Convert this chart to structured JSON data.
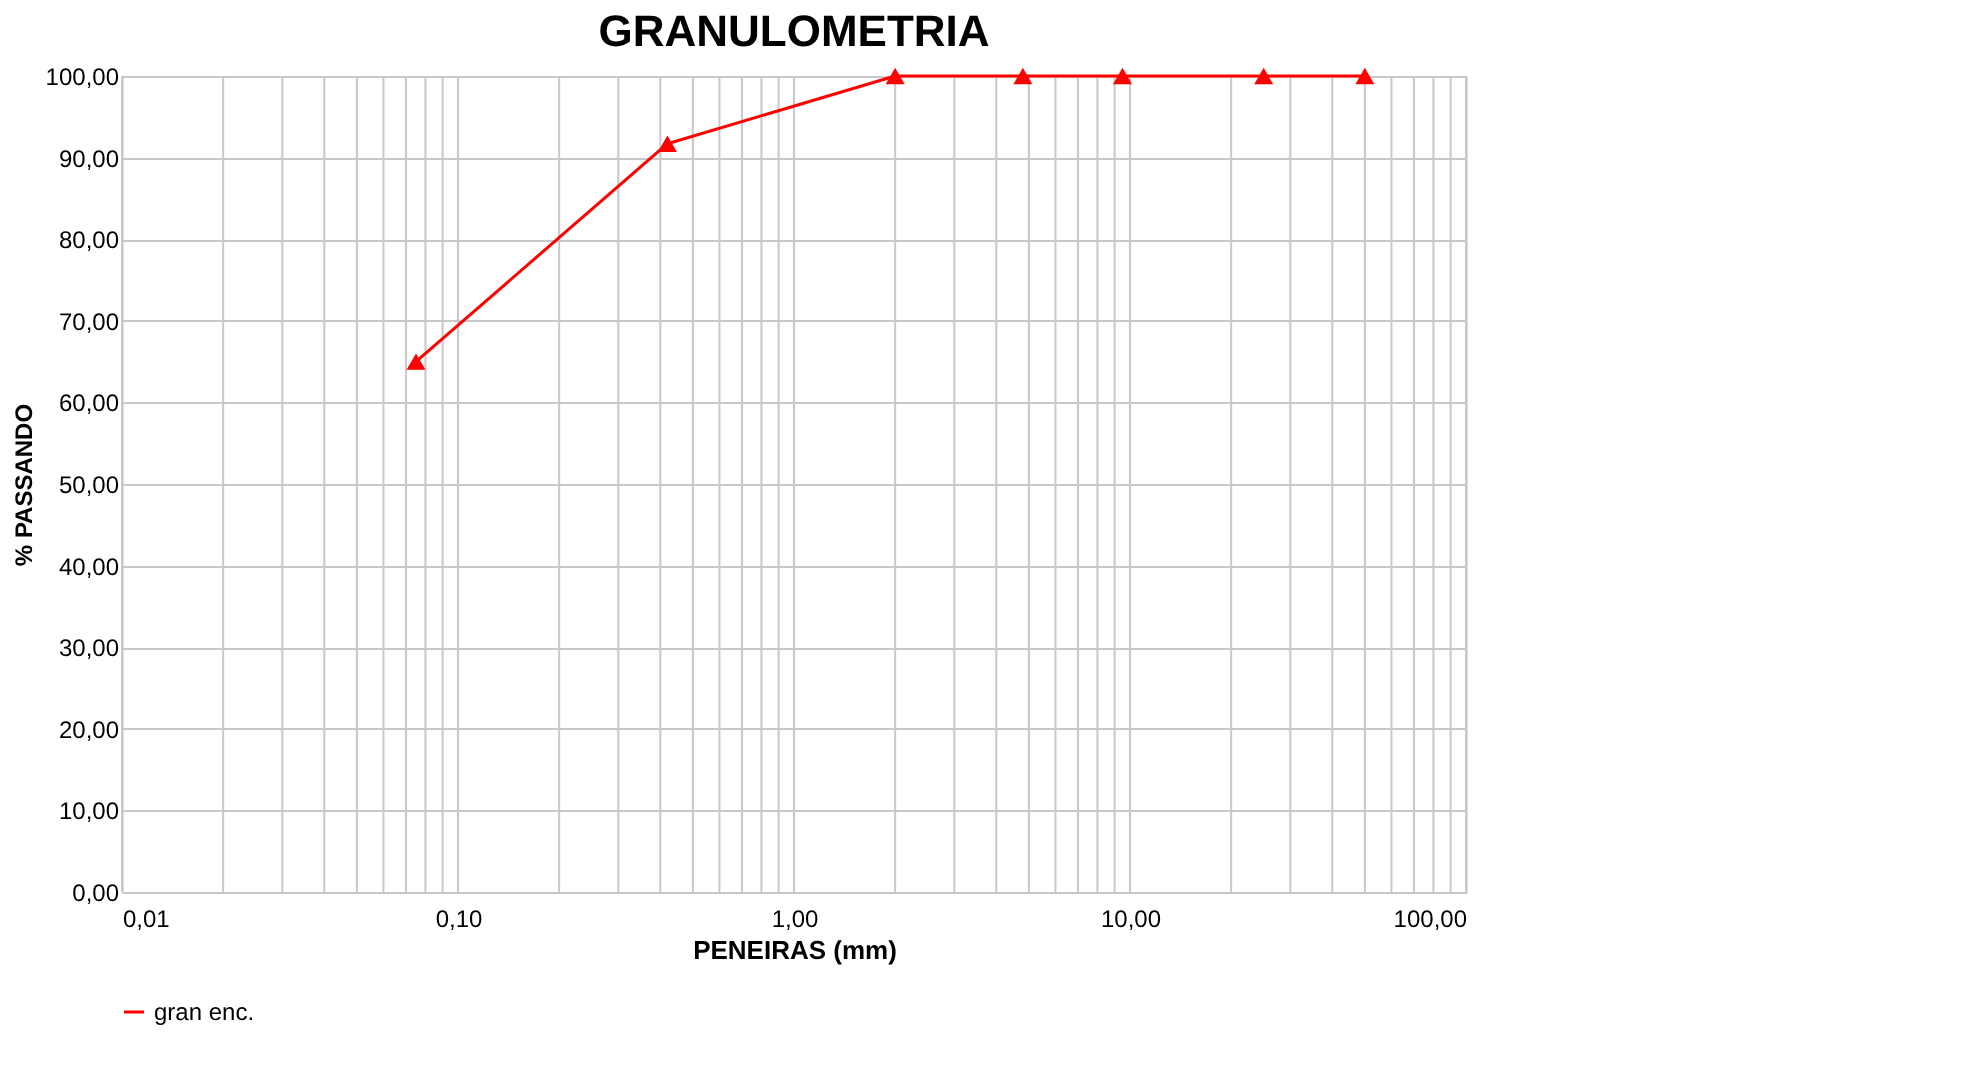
{
  "chart_data": {
    "type": "line",
    "title": "GRANULOMETRIA",
    "xlabel": "PENEIRAS (mm)",
    "ylabel": "% PASSANDO",
    "x": [
      0.075,
      0.42,
      2.0,
      4.8,
      9.5,
      25,
      50
    ],
    "series": [
      {
        "name": "gran enc.",
        "color": "#ff0000",
        "values": [
          65.0,
          91.7,
          100,
          100,
          100,
          100,
          100
        ]
      }
    ],
    "log": "x",
    "xlim": [
      0.01,
      100
    ],
    "xticks": [
      {
        "value": 0.01,
        "label": "0,01"
      },
      {
        "value": 0.1,
        "label": "0,10"
      },
      {
        "value": 1,
        "label": "1,00"
      },
      {
        "value": 10,
        "label": "10,00"
      },
      {
        "value": 100,
        "label": "100,00"
      }
    ],
    "ylim": [
      0,
      100
    ],
    "yticks": [
      {
        "value": 0,
        "label": "0,00"
      },
      {
        "value": 10,
        "label": "10,00"
      },
      {
        "value": 20,
        "label": "20,00"
      },
      {
        "value": 30,
        "label": "30,00"
      },
      {
        "value": 40,
        "label": "40,00"
      },
      {
        "value": 50,
        "label": "50,00"
      },
      {
        "value": 60,
        "label": "60,00"
      },
      {
        "value": 70,
        "label": "70,00"
      },
      {
        "value": 80,
        "label": "80,00"
      },
      {
        "value": 90,
        "label": "90,00"
      },
      {
        "value": 100,
        "label": "100,00"
      }
    ],
    "grid": true,
    "legend": "bottom",
    "marker": "triangle",
    "line_style": "solid"
  }
}
